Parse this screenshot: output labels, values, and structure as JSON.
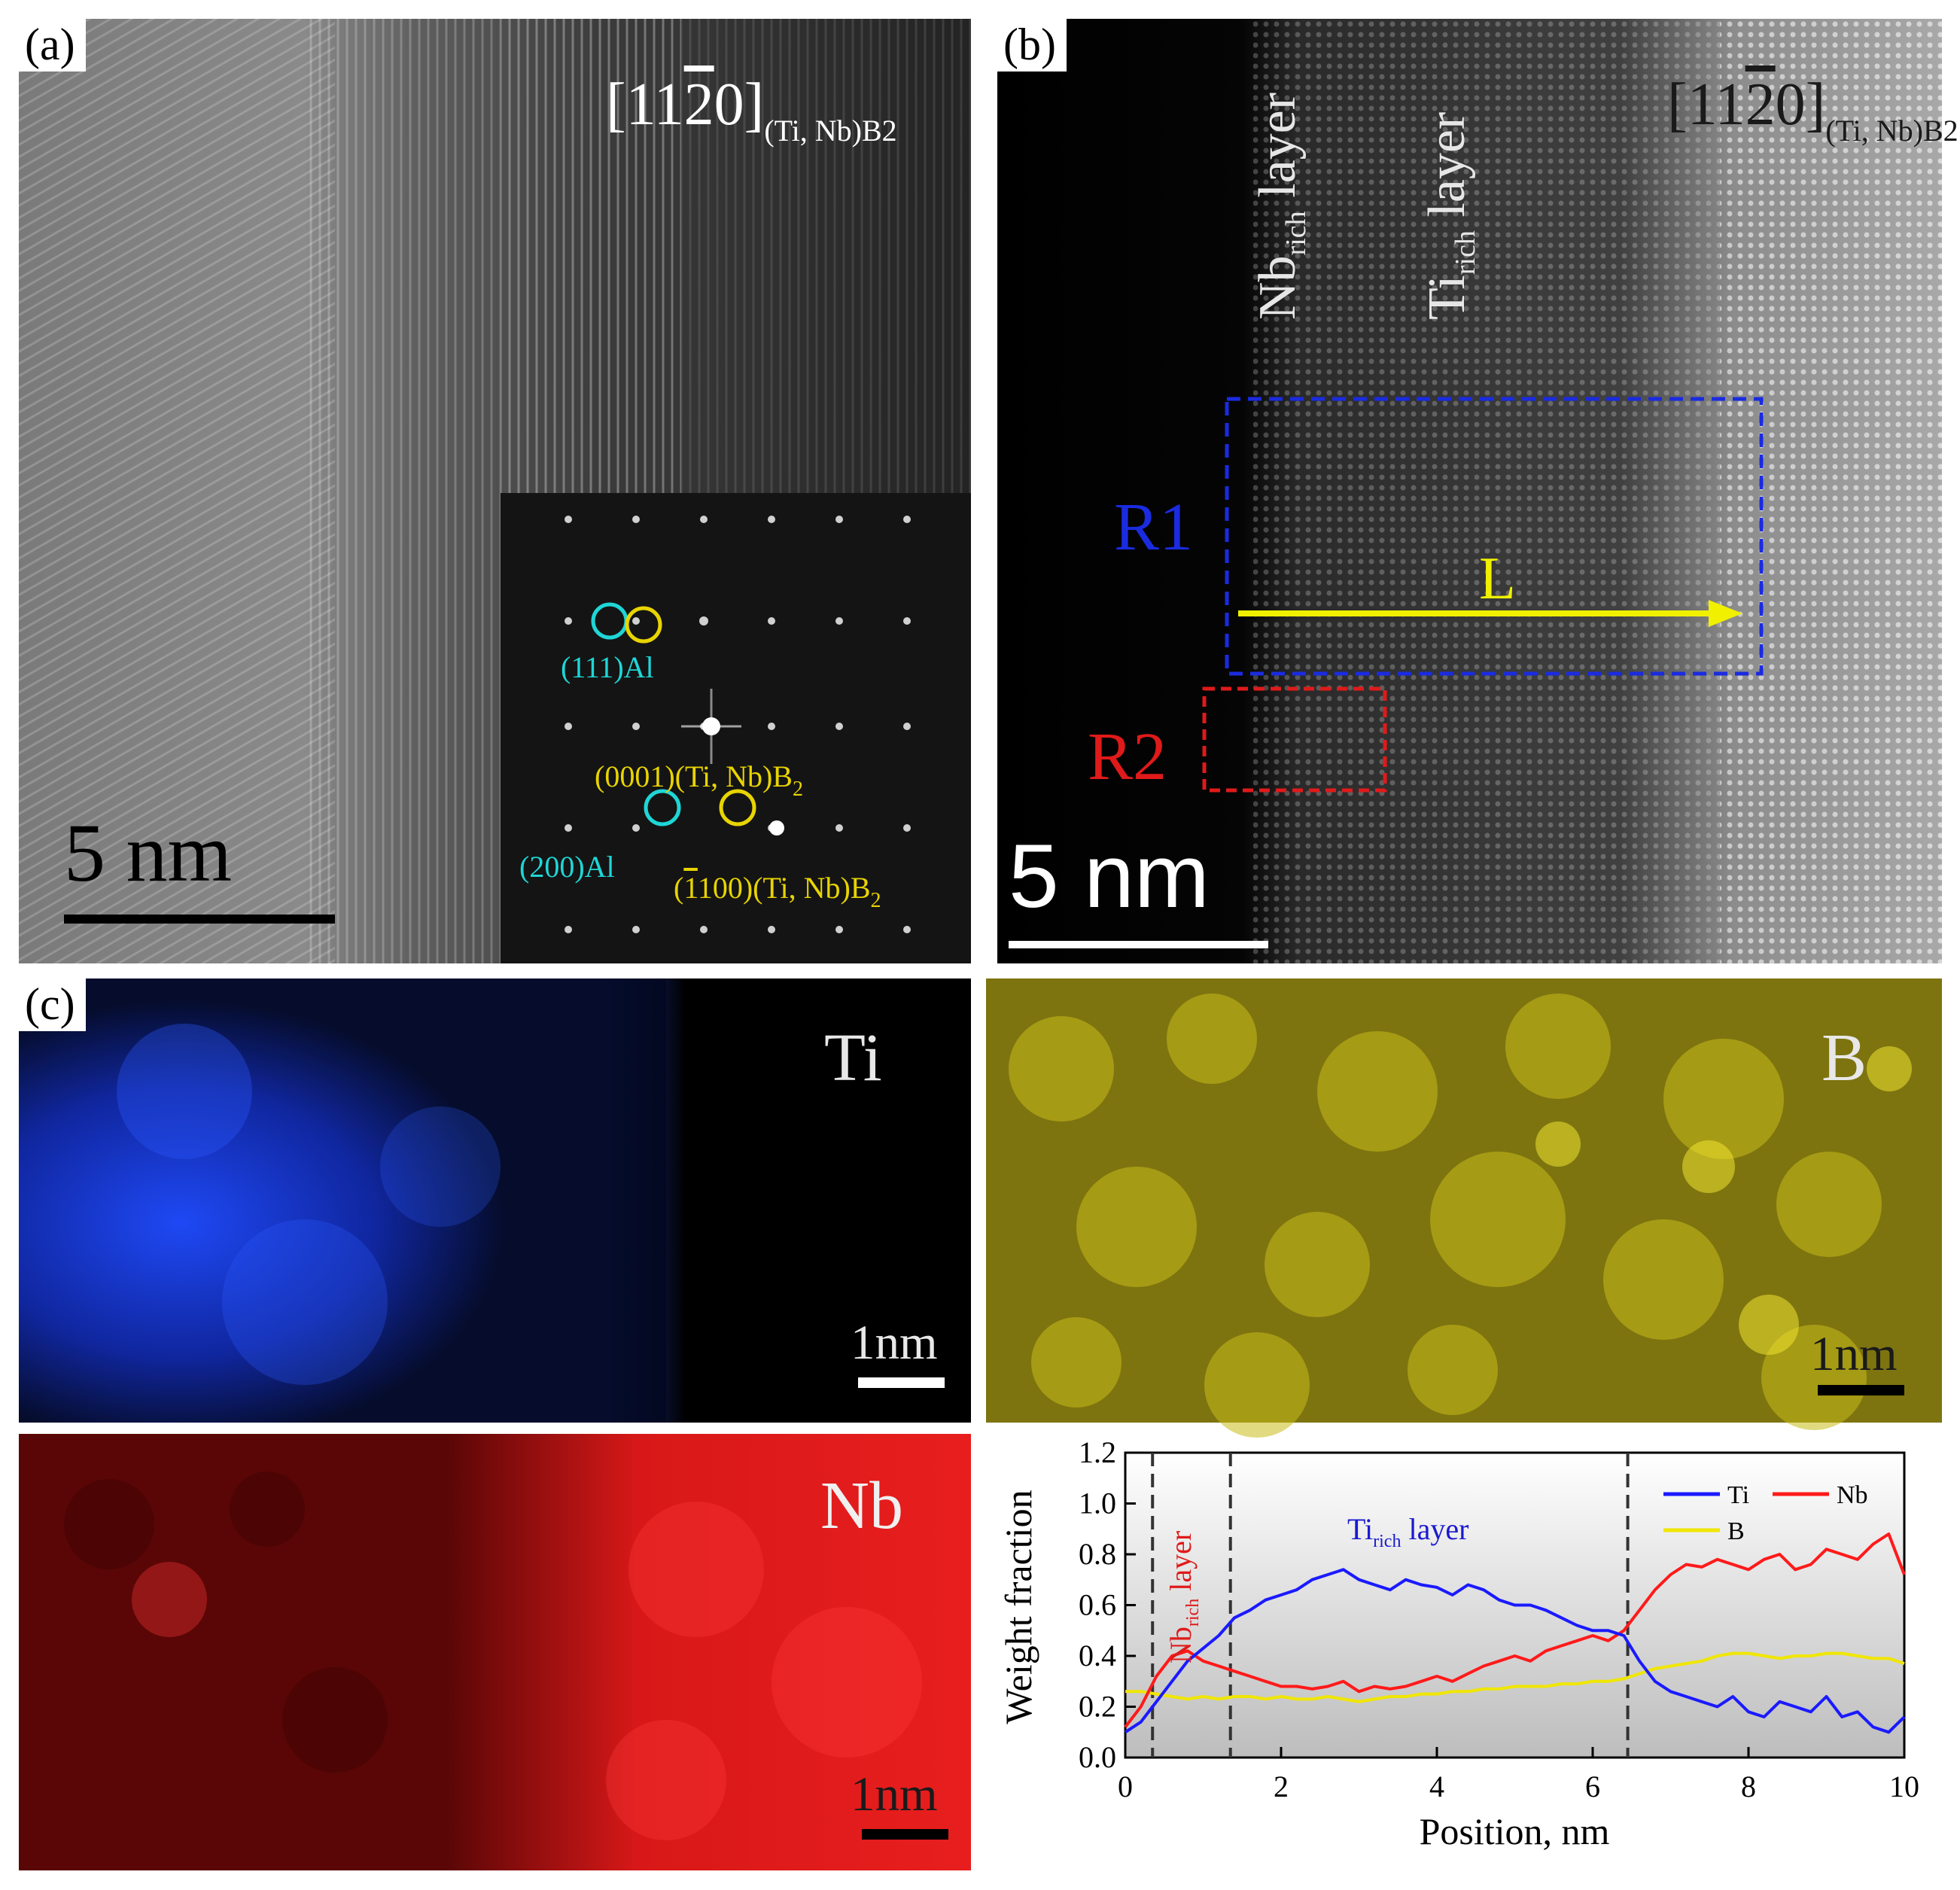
{
  "panel_a": {
    "label": "(a)",
    "zone_axis": "[11",
    "zone_axis_bar": "2",
    "zone_axis_end": "0]",
    "zone_axis_sub": "(Ti, Nb)B2",
    "scale_bar": "5 nm",
    "inset_labels": {
      "al111": "(111)Al",
      "b0001": "(0001)(Ti, Nb)B",
      "b0001_sub": "2",
      "al200": "(200)Al",
      "b1100_pre": "(",
      "b1100_bar": "1",
      "b1100_post": "100)(Ti, Nb)B",
      "b1100_sub": "2"
    },
    "colors": {
      "cyan": "#1fd6d6",
      "yellow": "#e8d400"
    }
  },
  "panel_b": {
    "label": "(b)",
    "zone_axis": "[11",
    "zone_axis_bar": "2",
    "zone_axis_end": "0]",
    "zone_axis_sub": "(Ti, Nb)B2",
    "nb_layer": "Nb",
    "nb_layer_sub": "rich",
    "nb_layer_suffix": " layer",
    "ti_layer": "Ti",
    "ti_layer_sub": "rich",
    "ti_layer_suffix": " layer",
    "r1": "R1",
    "r2": "R2",
    "line_label": "L",
    "scale_bar": "5 nm",
    "colors": {
      "r1": "#1a2be0",
      "r2": "#e01a1a",
      "arrow": "#f0f000"
    }
  },
  "panel_c": {
    "label": "(c)",
    "maps": [
      {
        "element": "Ti",
        "scale": "1nm",
        "color": "#1e4bff"
      },
      {
        "element": "B",
        "scale": "1nm",
        "color": "#d8cc10"
      },
      {
        "element": "Nb",
        "scale": "1nm",
        "color": "#ff1a1a"
      }
    ]
  },
  "chart_data": {
    "type": "line",
    "xlabel": "Position, nm",
    "ylabel": "Weight fraction",
    "xlim": [
      0,
      10
    ],
    "ylim": [
      0,
      1.2
    ],
    "xticks": [
      "0",
      "2",
      "4",
      "6",
      "8",
      "10"
    ],
    "yticks": [
      "0.0",
      "0.2",
      "0.4",
      "0.6",
      "0.8",
      "1.0",
      "1.2"
    ],
    "dashed_lines_x": [
      0.35,
      1.35,
      6.45
    ],
    "annotations": {
      "ti_rich": "Ti",
      "ti_rich_sub": "rich",
      "ti_rich_suffix": " layer",
      "nb_rich": "Nb",
      "nb_rich_sub": "rich",
      "nb_rich_suffix": " layer"
    },
    "legend": [
      {
        "name": "Ti",
        "color": "#1a1aff"
      },
      {
        "name": "Nb",
        "color": "#ff1a1a"
      },
      {
        "name": "B",
        "color": "#f0e600"
      }
    ],
    "x": [
      0,
      0.2,
      0.4,
      0.6,
      0.8,
      1.0,
      1.2,
      1.4,
      1.6,
      1.8,
      2.0,
      2.2,
      2.4,
      2.6,
      2.8,
      3.0,
      3.2,
      3.4,
      3.6,
      3.8,
      4.0,
      4.2,
      4.4,
      4.6,
      4.8,
      5.0,
      5.2,
      5.4,
      5.6,
      5.8,
      6.0,
      6.2,
      6.4,
      6.6,
      6.8,
      7.0,
      7.2,
      7.4,
      7.6,
      7.8,
      8.0,
      8.2,
      8.4,
      8.6,
      8.8,
      9.0,
      9.2,
      9.4,
      9.6,
      9.8,
      10.0
    ],
    "series": [
      {
        "name": "Ti",
        "values": [
          0.1,
          0.14,
          0.22,
          0.3,
          0.38,
          0.43,
          0.48,
          0.55,
          0.58,
          0.62,
          0.64,
          0.66,
          0.7,
          0.72,
          0.74,
          0.7,
          0.68,
          0.66,
          0.7,
          0.68,
          0.67,
          0.64,
          0.68,
          0.66,
          0.62,
          0.6,
          0.6,
          0.58,
          0.55,
          0.52,
          0.5,
          0.5,
          0.48,
          0.38,
          0.3,
          0.26,
          0.24,
          0.22,
          0.2,
          0.24,
          0.18,
          0.16,
          0.22,
          0.2,
          0.18,
          0.24,
          0.16,
          0.18,
          0.12,
          0.1,
          0.16
        ]
      },
      {
        "name": "Nb",
        "values": [
          0.12,
          0.2,
          0.32,
          0.4,
          0.42,
          0.38,
          0.36,
          0.34,
          0.32,
          0.3,
          0.28,
          0.28,
          0.27,
          0.28,
          0.3,
          0.26,
          0.28,
          0.27,
          0.28,
          0.3,
          0.32,
          0.3,
          0.33,
          0.36,
          0.38,
          0.4,
          0.38,
          0.42,
          0.44,
          0.46,
          0.48,
          0.46,
          0.5,
          0.58,
          0.66,
          0.72,
          0.76,
          0.75,
          0.78,
          0.76,
          0.74,
          0.78,
          0.8,
          0.74,
          0.76,
          0.82,
          0.8,
          0.78,
          0.84,
          0.88,
          0.72
        ]
      },
      {
        "name": "B",
        "values": [
          0.26,
          0.26,
          0.25,
          0.24,
          0.23,
          0.24,
          0.23,
          0.24,
          0.24,
          0.23,
          0.24,
          0.23,
          0.23,
          0.24,
          0.23,
          0.22,
          0.23,
          0.24,
          0.24,
          0.25,
          0.25,
          0.26,
          0.26,
          0.27,
          0.27,
          0.28,
          0.28,
          0.28,
          0.29,
          0.29,
          0.3,
          0.3,
          0.31,
          0.33,
          0.35,
          0.36,
          0.37,
          0.38,
          0.4,
          0.41,
          0.41,
          0.4,
          0.39,
          0.4,
          0.4,
          0.41,
          0.41,
          0.4,
          0.39,
          0.39,
          0.37
        ]
      }
    ]
  }
}
